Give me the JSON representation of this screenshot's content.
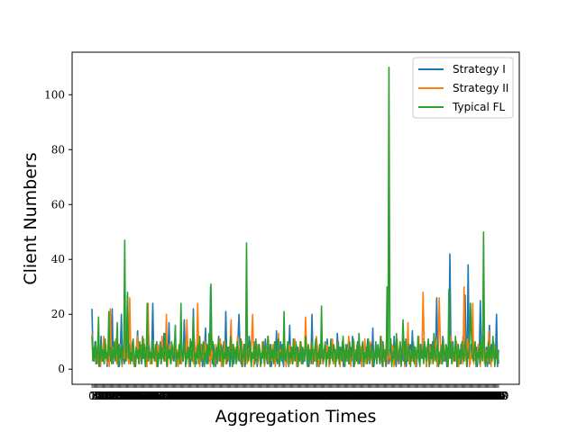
{
  "chart_data": {
    "type": "line",
    "title": "",
    "xlabel": "Aggregation Times",
    "ylabel": "Client Numbers",
    "x_range": [
      1,
      400
    ],
    "ylim": [
      -5.5,
      115.5
    ],
    "y_ticks": [
      0,
      20,
      40,
      60,
      80,
      100
    ],
    "x_tick_labels_note": "dense overlapping integer labels (illegible)",
    "legend": {
      "placement": "top-right",
      "entries": [
        "Strategy I",
        "Strategy II",
        "Typical FL"
      ]
    },
    "grid": false,
    "series": [
      {
        "name": "Strategy I",
        "color": "#1f77b4",
        "values": [
          22,
          5,
          3,
          10,
          2,
          6,
          8,
          1,
          4,
          12,
          3,
          7,
          2,
          9,
          5,
          1,
          6,
          18,
          3,
          4,
          22,
          2,
          8,
          5,
          3,
          10,
          4,
          1,
          7,
          20,
          3,
          6,
          2,
          12,
          4,
          27,
          5,
          8,
          3,
          6,
          10,
          2,
          4,
          1,
          8,
          14,
          5,
          3,
          9,
          2,
          6,
          11,
          4,
          1,
          7,
          3,
          12,
          5,
          2,
          8,
          24,
          4,
          6,
          3,
          10,
          1,
          5,
          9,
          2,
          7,
          4,
          13,
          3,
          8,
          1,
          6,
          17,
          4,
          2,
          9,
          5,
          3,
          11,
          1,
          6,
          4,
          8,
          2,
          12,
          5,
          3,
          18,
          7,
          2,
          9,
          4,
          6,
          1,
          10,
          3,
          22,
          5,
          8,
          2,
          6,
          11,
          4,
          3,
          9,
          1,
          5,
          7,
          15,
          2,
          8,
          4,
          3,
          30,
          6,
          2,
          9,
          5,
          1,
          7,
          4,
          12,
          3,
          8,
          2,
          6,
          10,
          4,
          21,
          5,
          3,
          8,
          1,
          6,
          4,
          9,
          2,
          7,
          5,
          3,
          11,
          20,
          8,
          2,
          6,
          4,
          9,
          1,
          7,
          3,
          5,
          12,
          8,
          2,
          6,
          4,
          10,
          3,
          7,
          1,
          5,
          9,
          4,
          2,
          8,
          6,
          3,
          11,
          5,
          2,
          7,
          4,
          9,
          1,
          6,
          3,
          8,
          5,
          14,
          2,
          7,
          4,
          10,
          3,
          6,
          1,
          8,
          5,
          2,
          9,
          4,
          16,
          3,
          7,
          2,
          6,
          5,
          10,
          1,
          8,
          4,
          3,
          9,
          6,
          2,
          7,
          5,
          12,
          3,
          8,
          1,
          6,
          4,
          20,
          2,
          7,
          5,
          3,
          9,
          6,
          1,
          8,
          4,
          10,
          2,
          5,
          7,
          3,
          11,
          6,
          1,
          8,
          4,
          9,
          2,
          5,
          7,
          3,
          13,
          6,
          2,
          8,
          4,
          10,
          1,
          5,
          7,
          3,
          9,
          6,
          2,
          8,
          4,
          12,
          1,
          5,
          7,
          3,
          10,
          6,
          2,
          8,
          4,
          9,
          1,
          5,
          3,
          7,
          11,
          6,
          2,
          8,
          4,
          15,
          1,
          5,
          7,
          3,
          9,
          6,
          2,
          4,
          8,
          10,
          3,
          5,
          1,
          7,
          6,
          2,
          9,
          4,
          8,
          3,
          12,
          5,
          1,
          7,
          6,
          2,
          9,
          4,
          8,
          3,
          10,
          5,
          1,
          7,
          6,
          2,
          9,
          4,
          14,
          3,
          5,
          8,
          1,
          7,
          6,
          2,
          9,
          4,
          11,
          3,
          5,
          8,
          1,
          7,
          6,
          2,
          9,
          4,
          10,
          3,
          5,
          8,
          26,
          7,
          6,
          2,
          9,
          4,
          12,
          3,
          5,
          8,
          1,
          7,
          6,
          42,
          9,
          4,
          10,
          3,
          5,
          8,
          1,
          7,
          6,
          2,
          9,
          4,
          12,
          3,
          27,
          8,
          1,
          38,
          6,
          2,
          9,
          4,
          10,
          3,
          5,
          8,
          1,
          7,
          6,
          25,
          9,
          4,
          12,
          3,
          5,
          8,
          1,
          7,
          16,
          2,
          9,
          4,
          10,
          3,
          5,
          20,
          1,
          7
        ],
        "note": "approximate reading; spikes near x≈353 (42) and x≈368 (38)"
      },
      {
        "name": "Strategy II",
        "color": "#ff7f0e",
        "values": [
          13,
          4,
          6,
          3,
          8,
          2,
          10,
          5,
          1,
          7,
          3,
          12,
          4,
          9,
          2,
          6,
          1,
          22,
          5,
          3,
          8,
          4,
          11,
          2,
          6,
          3,
          9,
          5,
          1,
          7,
          4,
          14,
          3,
          8,
          2,
          26,
          6,
          4,
          10,
          1,
          5,
          3,
          12,
          7,
          2,
          9,
          4,
          6,
          11,
          3,
          8,
          1,
          24,
          5,
          2,
          7,
          4,
          10,
          3,
          6,
          1,
          9,
          5,
          8,
          2,
          12,
          4,
          7,
          3,
          20,
          1,
          6,
          9,
          2,
          5,
          4,
          8,
          11,
          3,
          7,
          1,
          6,
          10,
          2,
          5,
          4,
          9,
          3,
          18,
          7,
          1,
          6,
          4,
          8,
          2,
          11,
          5,
          3,
          24,
          7,
          1,
          9,
          4,
          6,
          2,
          10,
          5,
          8,
          3,
          7,
          1,
          12,
          4,
          6,
          2,
          9,
          5,
          3,
          8,
          11,
          1,
          6,
          4,
          10,
          2,
          7,
          5,
          3,
          9,
          18,
          1,
          6,
          4,
          8,
          2,
          12,
          5,
          3,
          7,
          10,
          1,
          6,
          4,
          9,
          2,
          5,
          8,
          3,
          11,
          20,
          1,
          6,
          4,
          9,
          2,
          7,
          5,
          3,
          10,
          8,
          1,
          6,
          4,
          12,
          2,
          7,
          5,
          3,
          9,
          8,
          1,
          6,
          4,
          13,
          2,
          7,
          5,
          3,
          10,
          8,
          1,
          6,
          4,
          9,
          2,
          7,
          5,
          3,
          11,
          8,
          1,
          6,
          4,
          10,
          2,
          7,
          5,
          3,
          19,
          8,
          1,
          6,
          4,
          9,
          2,
          7,
          5,
          3,
          12,
          8,
          1,
          6,
          4,
          10,
          2,
          7,
          5,
          3,
          9,
          8,
          1,
          6,
          4,
          11,
          2,
          7,
          5,
          3,
          10,
          8,
          1,
          6,
          4,
          9,
          2,
          7,
          5,
          3,
          12,
          8,
          1,
          6,
          4,
          10,
          2,
          7,
          5,
          3,
          9,
          8,
          1,
          6,
          4,
          11,
          2,
          7,
          5,
          3,
          10,
          8,
          1,
          6,
          4,
          9,
          2,
          7,
          5,
          3,
          12,
          8,
          1,
          6,
          4,
          10,
          2,
          7,
          5,
          3,
          9,
          8,
          1,
          6,
          4,
          11,
          2,
          7,
          5,
          3,
          10,
          8,
          1,
          6,
          4,
          17,
          2,
          7,
          5,
          3,
          9,
          8,
          1,
          6,
          4,
          12,
          2,
          7,
          5,
          28,
          10,
          8,
          1,
          6,
          4,
          9,
          2,
          7,
          5,
          3,
          11,
          8,
          1,
          6,
          26,
          10,
          2,
          7,
          5,
          3,
          9,
          8,
          1,
          6,
          4,
          12,
          2,
          7,
          5,
          3,
          10,
          8,
          1,
          6,
          4,
          9,
          2,
          30,
          5,
          3,
          11,
          8,
          1,
          6,
          4,
          24,
          2,
          7,
          5,
          3,
          9,
          8,
          1,
          6,
          4,
          10,
          2,
          7,
          5,
          3,
          14,
          8,
          1,
          6,
          4,
          9,
          2,
          7,
          5,
          3
        ],
        "note": "approximate reading"
      },
      {
        "name": "Typical FL",
        "color": "#2ca02c",
        "values": [
          12,
          3,
          8,
          4,
          10,
          2,
          6,
          19,
          1,
          5,
          9,
          3,
          7,
          2,
          11,
          4,
          6,
          3,
          21,
          5,
          8,
          2,
          7,
          4,
          10,
          3,
          6,
          17,
          1,
          9,
          4,
          8,
          2,
          5,
          10,
          47,
          3,
          7,
          28,
          4,
          9,
          2,
          6,
          3,
          11,
          5,
          1,
          8,
          4,
          7,
          2,
          10,
          6,
          3,
          12,
          4,
          9,
          1,
          5,
          24,
          3,
          8,
          4,
          6,
          2,
          11,
          5,
          3,
          9,
          7,
          1,
          6,
          4,
          10,
          2,
          8,
          5,
          3,
          13,
          6,
          1,
          9,
          4,
          7,
          2,
          10,
          5,
          3,
          8,
          16,
          1,
          6,
          4,
          9,
          2,
          24,
          5,
          3,
          7,
          10,
          1,
          6,
          4,
          8,
          2,
          11,
          5,
          3,
          19,
          7,
          1,
          6,
          4,
          9,
          2,
          12,
          5,
          3,
          8,
          10,
          1,
          6,
          4,
          9,
          2,
          13,
          5,
          31,
          7,
          10,
          1,
          6,
          4,
          8,
          2,
          11,
          5,
          3,
          9,
          7,
          1,
          6,
          4,
          10,
          2,
          8,
          5,
          3,
          12,
          6,
          1,
          9,
          4,
          7,
          2,
          10,
          5,
          3,
          8,
          11,
          1,
          6,
          4,
          9,
          2,
          46,
          5,
          3,
          7,
          10,
          1,
          6,
          4,
          8,
          2,
          11,
          5,
          3,
          9,
          7,
          1,
          6,
          4,
          10,
          2,
          8,
          5,
          3,
          12,
          6,
          1,
          9,
          4,
          7,
          2,
          10,
          5,
          3,
          8,
          11,
          1,
          6,
          4,
          9,
          2,
          21,
          5,
          3,
          7,
          10,
          1,
          6,
          4,
          8,
          2,
          11,
          5,
          3,
          9,
          7,
          1,
          6,
          4,
          10,
          2,
          8,
          5,
          3,
          12,
          6,
          1,
          9,
          4,
          7,
          2,
          10,
          5,
          3,
          8,
          11,
          1,
          6,
          4,
          9,
          2,
          23,
          5,
          3,
          7,
          10,
          1,
          6,
          4,
          8,
          2,
          11,
          5,
          3,
          9,
          7,
          1,
          6,
          4,
          10,
          2,
          8,
          5,
          3,
          12,
          6,
          1,
          9,
          4,
          7,
          2,
          10,
          5,
          3,
          8,
          11,
          1,
          6,
          4,
          9,
          2,
          13,
          5,
          3,
          7,
          10,
          1,
          6,
          4,
          8,
          2,
          11,
          5,
          3,
          9,
          7,
          1,
          6,
          4,
          10,
          2,
          8,
          5,
          3,
          12,
          6,
          1,
          9,
          4,
          7,
          2,
          30,
          5,
          110,
          8,
          11,
          1,
          6,
          4,
          9,
          2,
          13,
          5,
          3,
          7,
          10,
          1,
          6,
          18,
          8,
          2,
          11,
          5,
          3,
          9,
          7,
          1,
          6,
          4,
          10,
          2,
          8,
          5,
          3,
          12,
          6,
          1,
          9,
          4,
          7,
          2,
          10,
          5,
          3,
          8,
          11,
          1,
          6,
          4,
          9,
          2,
          13,
          5,
          3,
          7,
          10,
          1,
          6,
          4,
          8,
          2,
          11,
          5,
          3,
          9,
          7,
          1,
          29,
          4,
          10,
          2,
          8,
          5,
          3,
          12,
          6,
          1,
          9,
          4,
          7,
          2,
          10,
          5,
          3,
          8,
          11,
          1,
          6,
          4,
          9,
          24,
          13,
          5,
          3,
          7,
          10,
          1,
          6,
          4,
          8,
          2,
          11,
          5,
          3,
          50,
          7,
          1,
          6,
          4,
          10,
          2,
          8,
          5,
          3,
          12,
          6,
          1,
          9,
          4,
          7,
          2
        ],
        "note": "approximate reading; peak 110 near x≈293, 50 near x≈387, 47 near x≈36, 46 near x≈160"
      }
    ]
  }
}
